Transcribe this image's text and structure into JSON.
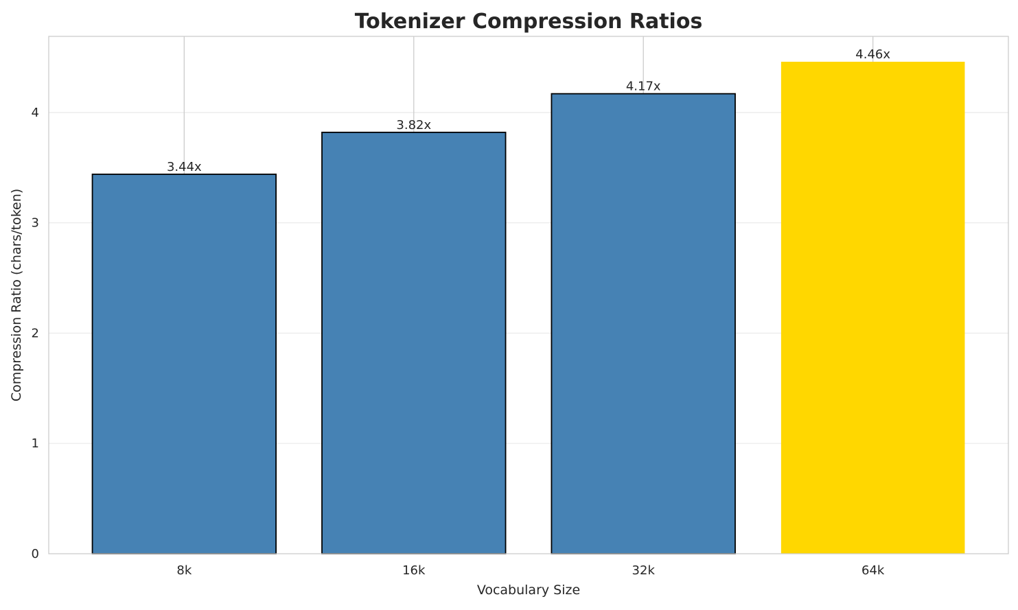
{
  "chart_data": {
    "type": "bar",
    "title": "Tokenizer Compression Ratios",
    "xlabel": "Vocabulary Size",
    "ylabel": "Compression Ratio (chars/token)",
    "categories": [
      "8k",
      "16k",
      "32k",
      "64k"
    ],
    "values": [
      3.44,
      3.82,
      4.17,
      4.46
    ],
    "data_labels": [
      "3.44x",
      "3.82x",
      "4.17x",
      "4.46x"
    ],
    "colors": [
      "#4682B4",
      "#4682B4",
      "#4682B4",
      "#FFD700"
    ],
    "edge_colors": [
      "#000000",
      "#000000",
      "#000000",
      "none"
    ],
    "ylim": [
      0,
      4.69
    ],
    "yticks": [
      0,
      1,
      2,
      3,
      4
    ],
    "grid": true,
    "legend": "none"
  }
}
